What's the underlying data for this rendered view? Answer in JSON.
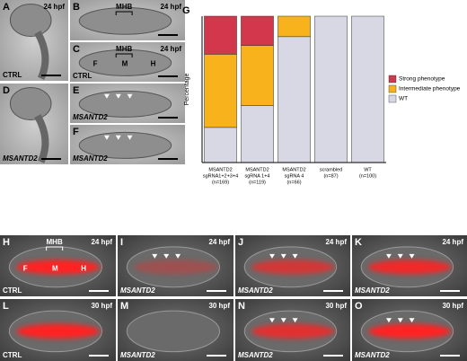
{
  "panels": {
    "A": {
      "letter": "A",
      "stage": "24 hpf",
      "condition": "CTRL"
    },
    "B": {
      "letter": "B",
      "stage": "24 hpf",
      "region": "MHB"
    },
    "C": {
      "letter": "C",
      "stage": "24 hpf",
      "condition": "CTRL",
      "region": "MHB",
      "labels": [
        "F",
        "M",
        "H"
      ]
    },
    "D": {
      "letter": "D",
      "condition": "MSANTD2"
    },
    "E": {
      "letter": "E",
      "condition": "MSANTD2"
    },
    "F": {
      "letter": "F",
      "condition": "MSANTD2"
    },
    "H": {
      "letter": "H",
      "stage": "24 hpf",
      "condition": "CTRL",
      "region": "MHB",
      "labels": [
        "F",
        "M",
        "H"
      ]
    },
    "I": {
      "letter": "I",
      "stage": "24 hpf",
      "condition": "MSANTD2"
    },
    "J": {
      "letter": "J",
      "stage": "24 hpf",
      "condition": "MSANTD2"
    },
    "K": {
      "letter": "K",
      "stage": "24 hpf",
      "condition": "MSANTD2"
    },
    "L": {
      "letter": "L",
      "stage": "30 hpf",
      "condition": "CTRL"
    },
    "M": {
      "letter": "M",
      "stage": "30 hpf",
      "condition": "MSANTD2"
    },
    "N": {
      "letter": "N",
      "stage": "30 hpf",
      "condition": "MSANTD2"
    },
    "O": {
      "letter": "O",
      "stage": "30 hpf",
      "condition": "MSANTD2"
    }
  },
  "chart_data": {
    "type": "bar",
    "stacked": true,
    "letter": "G",
    "y_label": "Percentage",
    "categories": [
      [
        "MSANTD2",
        "sgRNA1+2+3+4",
        "(n=169)"
      ],
      [
        "MSANTD2",
        "sgRNA 1+4",
        "(n=119)"
      ],
      [
        "MSANTD2",
        "sgRNA 4",
        "(n=66)"
      ],
      [
        "scrambled",
        "(n=87)"
      ],
      [
        "WT",
        "(n=100)"
      ]
    ],
    "series": [
      {
        "name": "WT",
        "color": "#d8d8e4",
        "values": [
          24,
          39,
          86,
          100,
          100
        ]
      },
      {
        "name": "Intermediate phenotype",
        "color": "#f7b21c",
        "values": [
          50,
          41,
          14,
          0,
          0
        ]
      },
      {
        "name": "Strong phenotype",
        "color": "#d2374b",
        "values": [
          26,
          20,
          0,
          0,
          0
        ]
      }
    ],
    "ylim": [
      0,
      100
    ]
  }
}
